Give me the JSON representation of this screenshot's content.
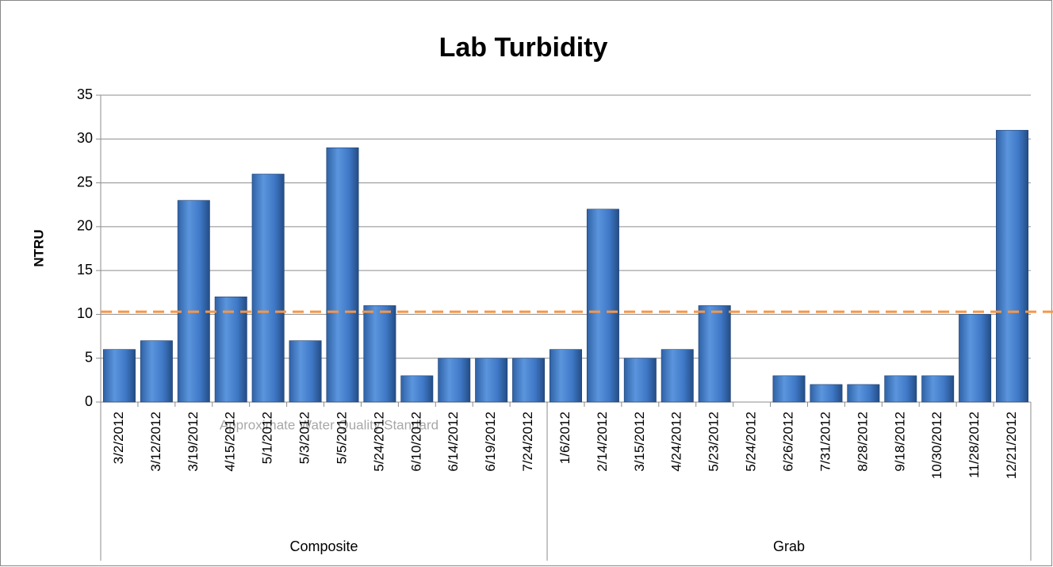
{
  "chart_data": {
    "type": "bar",
    "title": "Lab Turbidity",
    "y_label": "NTRU",
    "color": "#4f81bd",
    "ylim": [
      0,
      35
    ],
    "yticks": [
      0,
      5,
      10,
      15,
      20,
      25,
      30,
      35
    ],
    "grid": true,
    "groups": [
      {
        "name": "Composite",
        "categories": [
          "3/2/2012",
          "3/12/2012",
          "3/19/2012",
          "4/15/2012",
          "5/1/2012",
          "5/3/2012",
          "5/5/2012",
          "5/24/2012",
          "6/10/2012",
          "6/14/2012",
          "6/19/2012",
          "7/24/2012"
        ],
        "values": [
          6,
          7,
          23,
          12,
          26,
          7,
          29,
          11,
          3,
          5,
          5,
          5
        ]
      },
      {
        "name": "Grab",
        "categories": [
          "1/6/2012",
          "2/14/2012",
          "3/15/2012",
          "4/24/2012",
          "5/23/2012",
          "5/24/2012",
          "6/26/2012",
          "7/31/2012",
          "8/28/2012",
          "9/18/2012",
          "10/30/2012",
          "11/28/2012",
          "12/21/2012"
        ],
        "values": [
          6,
          22,
          5,
          6,
          11,
          null,
          3,
          2,
          2,
          3,
          3,
          10,
          31
        ]
      }
    ],
    "reference_line": {
      "name": "Approximate Water Quality Standard",
      "value": 10.3,
      "color": "#f79646"
    }
  }
}
